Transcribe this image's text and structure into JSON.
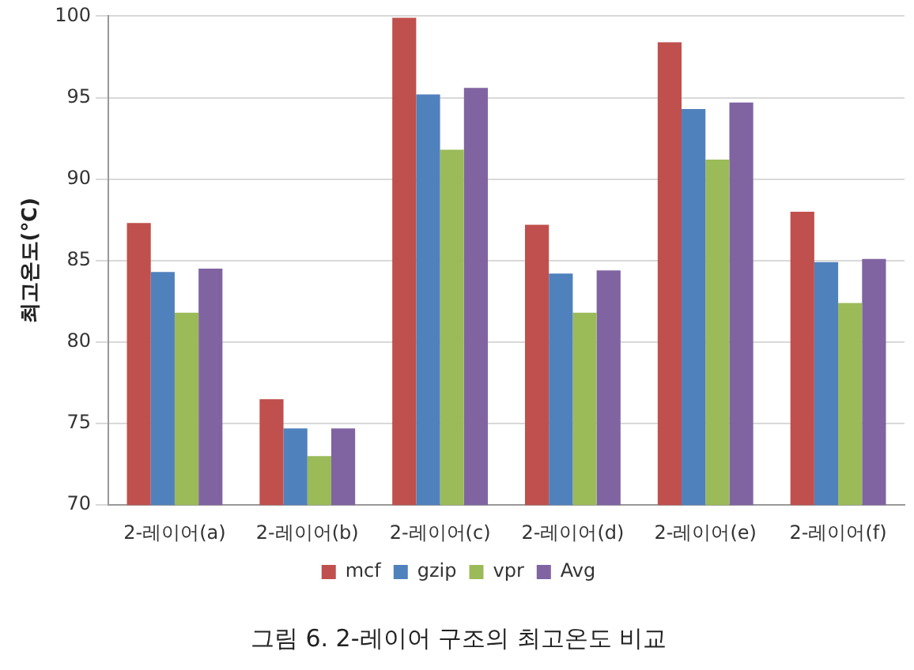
{
  "chart_data": {
    "type": "bar",
    "title": "그림 6. 2-레이어 구조의 최고온도 비교",
    "ylabel": "최고온도(℃)",
    "categories": [
      "2-레이어(a)",
      "2-레이어(b)",
      "2-레이어(c)",
      "2-레이어(d)",
      "2-레이어(e)",
      "2-레이어(f)"
    ],
    "series": [
      {
        "name": "mcf",
        "color": "#c0504d",
        "values": [
          87.3,
          76.5,
          99.9,
          87.2,
          98.4,
          88.0
        ]
      },
      {
        "name": "gzip",
        "color": "#4f81bd",
        "values": [
          84.3,
          74.7,
          95.2,
          84.2,
          94.3,
          84.9
        ]
      },
      {
        "name": "vpr",
        "color": "#9bbb59",
        "values": [
          81.8,
          73.0,
          91.8,
          81.8,
          91.2,
          82.4
        ]
      },
      {
        "name": "Avg",
        "color": "#8064a2",
        "values": [
          84.5,
          74.7,
          95.6,
          84.4,
          94.7,
          85.1
        ]
      }
    ],
    "ylim": [
      70,
      100
    ],
    "yticks": [
      70,
      75,
      80,
      85,
      90,
      95,
      100
    ],
    "grid": "y",
    "legend": "bottom"
  }
}
